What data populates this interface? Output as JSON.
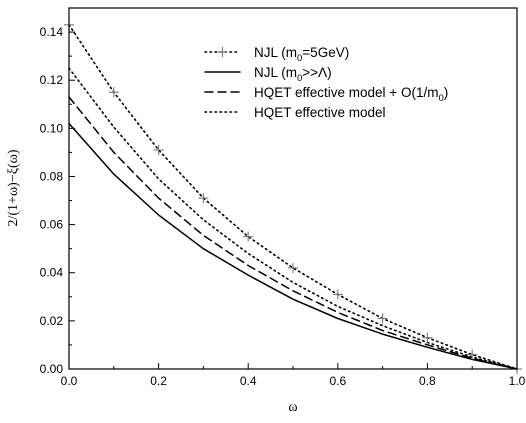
{
  "chart_data": {
    "type": "line",
    "xlabel": "ω",
    "ylabel": "2/(1+ω)−ξ(ω)",
    "xlim": [
      0.0,
      1.0
    ],
    "ylim": [
      0.0,
      0.15
    ],
    "x_ticks": [
      "0.0",
      "0.2",
      "0.4",
      "0.6",
      "0.8",
      "1.0"
    ],
    "y_ticks": [
      "0.00",
      "0.02",
      "0.04",
      "0.06",
      "0.08",
      "0.10",
      "0.12",
      "0.14"
    ],
    "grid": false,
    "legend_position": "top-right",
    "series": [
      {
        "legend_main": "NJL (m",
        "legend_sub": "0",
        "legend_tail": "=5GeV)",
        "style": "dotted-plus",
        "x": [
          0.0,
          0.1,
          0.2,
          0.3,
          0.4,
          0.5,
          0.6,
          0.7,
          0.8,
          0.9,
          1.0
        ],
        "y": [
          0.143,
          0.115,
          0.091,
          0.071,
          0.055,
          0.042,
          0.031,
          0.021,
          0.013,
          0.006,
          0.0
        ]
      },
      {
        "legend_main": "NJL (m",
        "legend_sub": "0",
        "legend_tail": ">>Λ)",
        "style": "solid",
        "x": [
          0.0,
          0.1,
          0.2,
          0.3,
          0.4,
          0.5,
          0.6,
          0.7,
          0.8,
          0.9,
          1.0
        ],
        "y": [
          0.102,
          0.081,
          0.064,
          0.05,
          0.039,
          0.029,
          0.021,
          0.0145,
          0.009,
          0.004,
          0.0
        ]
      },
      {
        "legend_main": "HQET effective model + O(1/m",
        "legend_sub": "0",
        "legend_tail": ")",
        "style": "dashed",
        "x": [
          0.0,
          0.1,
          0.2,
          0.3,
          0.4,
          0.5,
          0.6,
          0.7,
          0.8,
          0.9,
          1.0
        ],
        "y": [
          0.113,
          0.09,
          0.071,
          0.0555,
          0.043,
          0.0325,
          0.0235,
          0.016,
          0.01,
          0.0045,
          0.0
        ]
      },
      {
        "legend_main": "HQET effective model",
        "legend_sub": "",
        "legend_tail": "",
        "style": "dotted",
        "x": [
          0.0,
          0.1,
          0.2,
          0.3,
          0.4,
          0.5,
          0.6,
          0.7,
          0.8,
          0.9,
          1.0
        ],
        "y": [
          0.125,
          0.1005,
          0.079,
          0.062,
          0.048,
          0.036,
          0.026,
          0.018,
          0.011,
          0.005,
          0.0
        ]
      }
    ]
  }
}
